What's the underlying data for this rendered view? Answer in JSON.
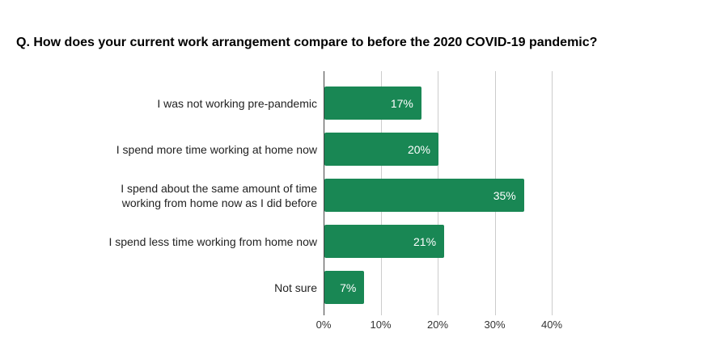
{
  "title": "Q. How does your current work arrangement compare to before the 2020 COVID-19 pandemic?",
  "chart_data": {
    "type": "bar",
    "orientation": "horizontal",
    "title": "Q. How does your current work arrangement compare to before the 2020 COVID-19 pandemic?",
    "categories": [
      "I was not working pre-pandemic",
      "I spend more time working at home now",
      "I spend about the same amount of time working from home now as I did before",
      "I spend less time working from home now",
      "Not sure"
    ],
    "values": [
      17,
      20,
      35,
      21,
      7
    ],
    "value_labels": [
      "17%",
      "20%",
      "35%",
      "21%",
      "7%"
    ],
    "x_ticks": [
      "0%",
      "10%",
      "20%",
      "30%",
      "40%"
    ],
    "x_tick_values": [
      0,
      10,
      20,
      30,
      40
    ],
    "xlim": [
      0,
      40
    ],
    "grid": true,
    "legend": "none",
    "bar_color": "#198754",
    "value_label_color": "#ffffff",
    "gridline_color": "#cccccc",
    "axis_line_color": "#444444"
  }
}
